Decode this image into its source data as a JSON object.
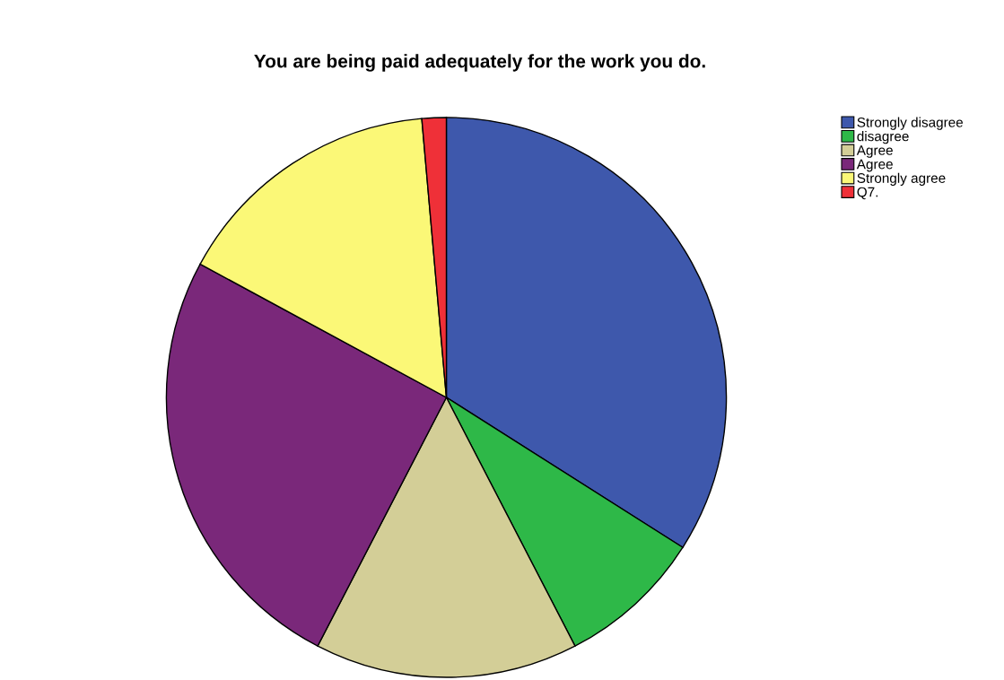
{
  "chart_data": {
    "type": "pie",
    "title": "You are being paid adequately for the work you do.",
    "categories": [
      "Strongly disagree",
      "disagree",
      "Agree",
      "Agree",
      "Strongly agree",
      "Q7."
    ],
    "values": [
      34.0,
      8.4,
      15.2,
      25.3,
      15.7,
      1.4
    ],
    "colors": [
      "#3e58ac",
      "#2eb848",
      "#d3ce97",
      "#7a287a",
      "#fbf877",
      "#ef3038"
    ],
    "legend": "top right"
  }
}
